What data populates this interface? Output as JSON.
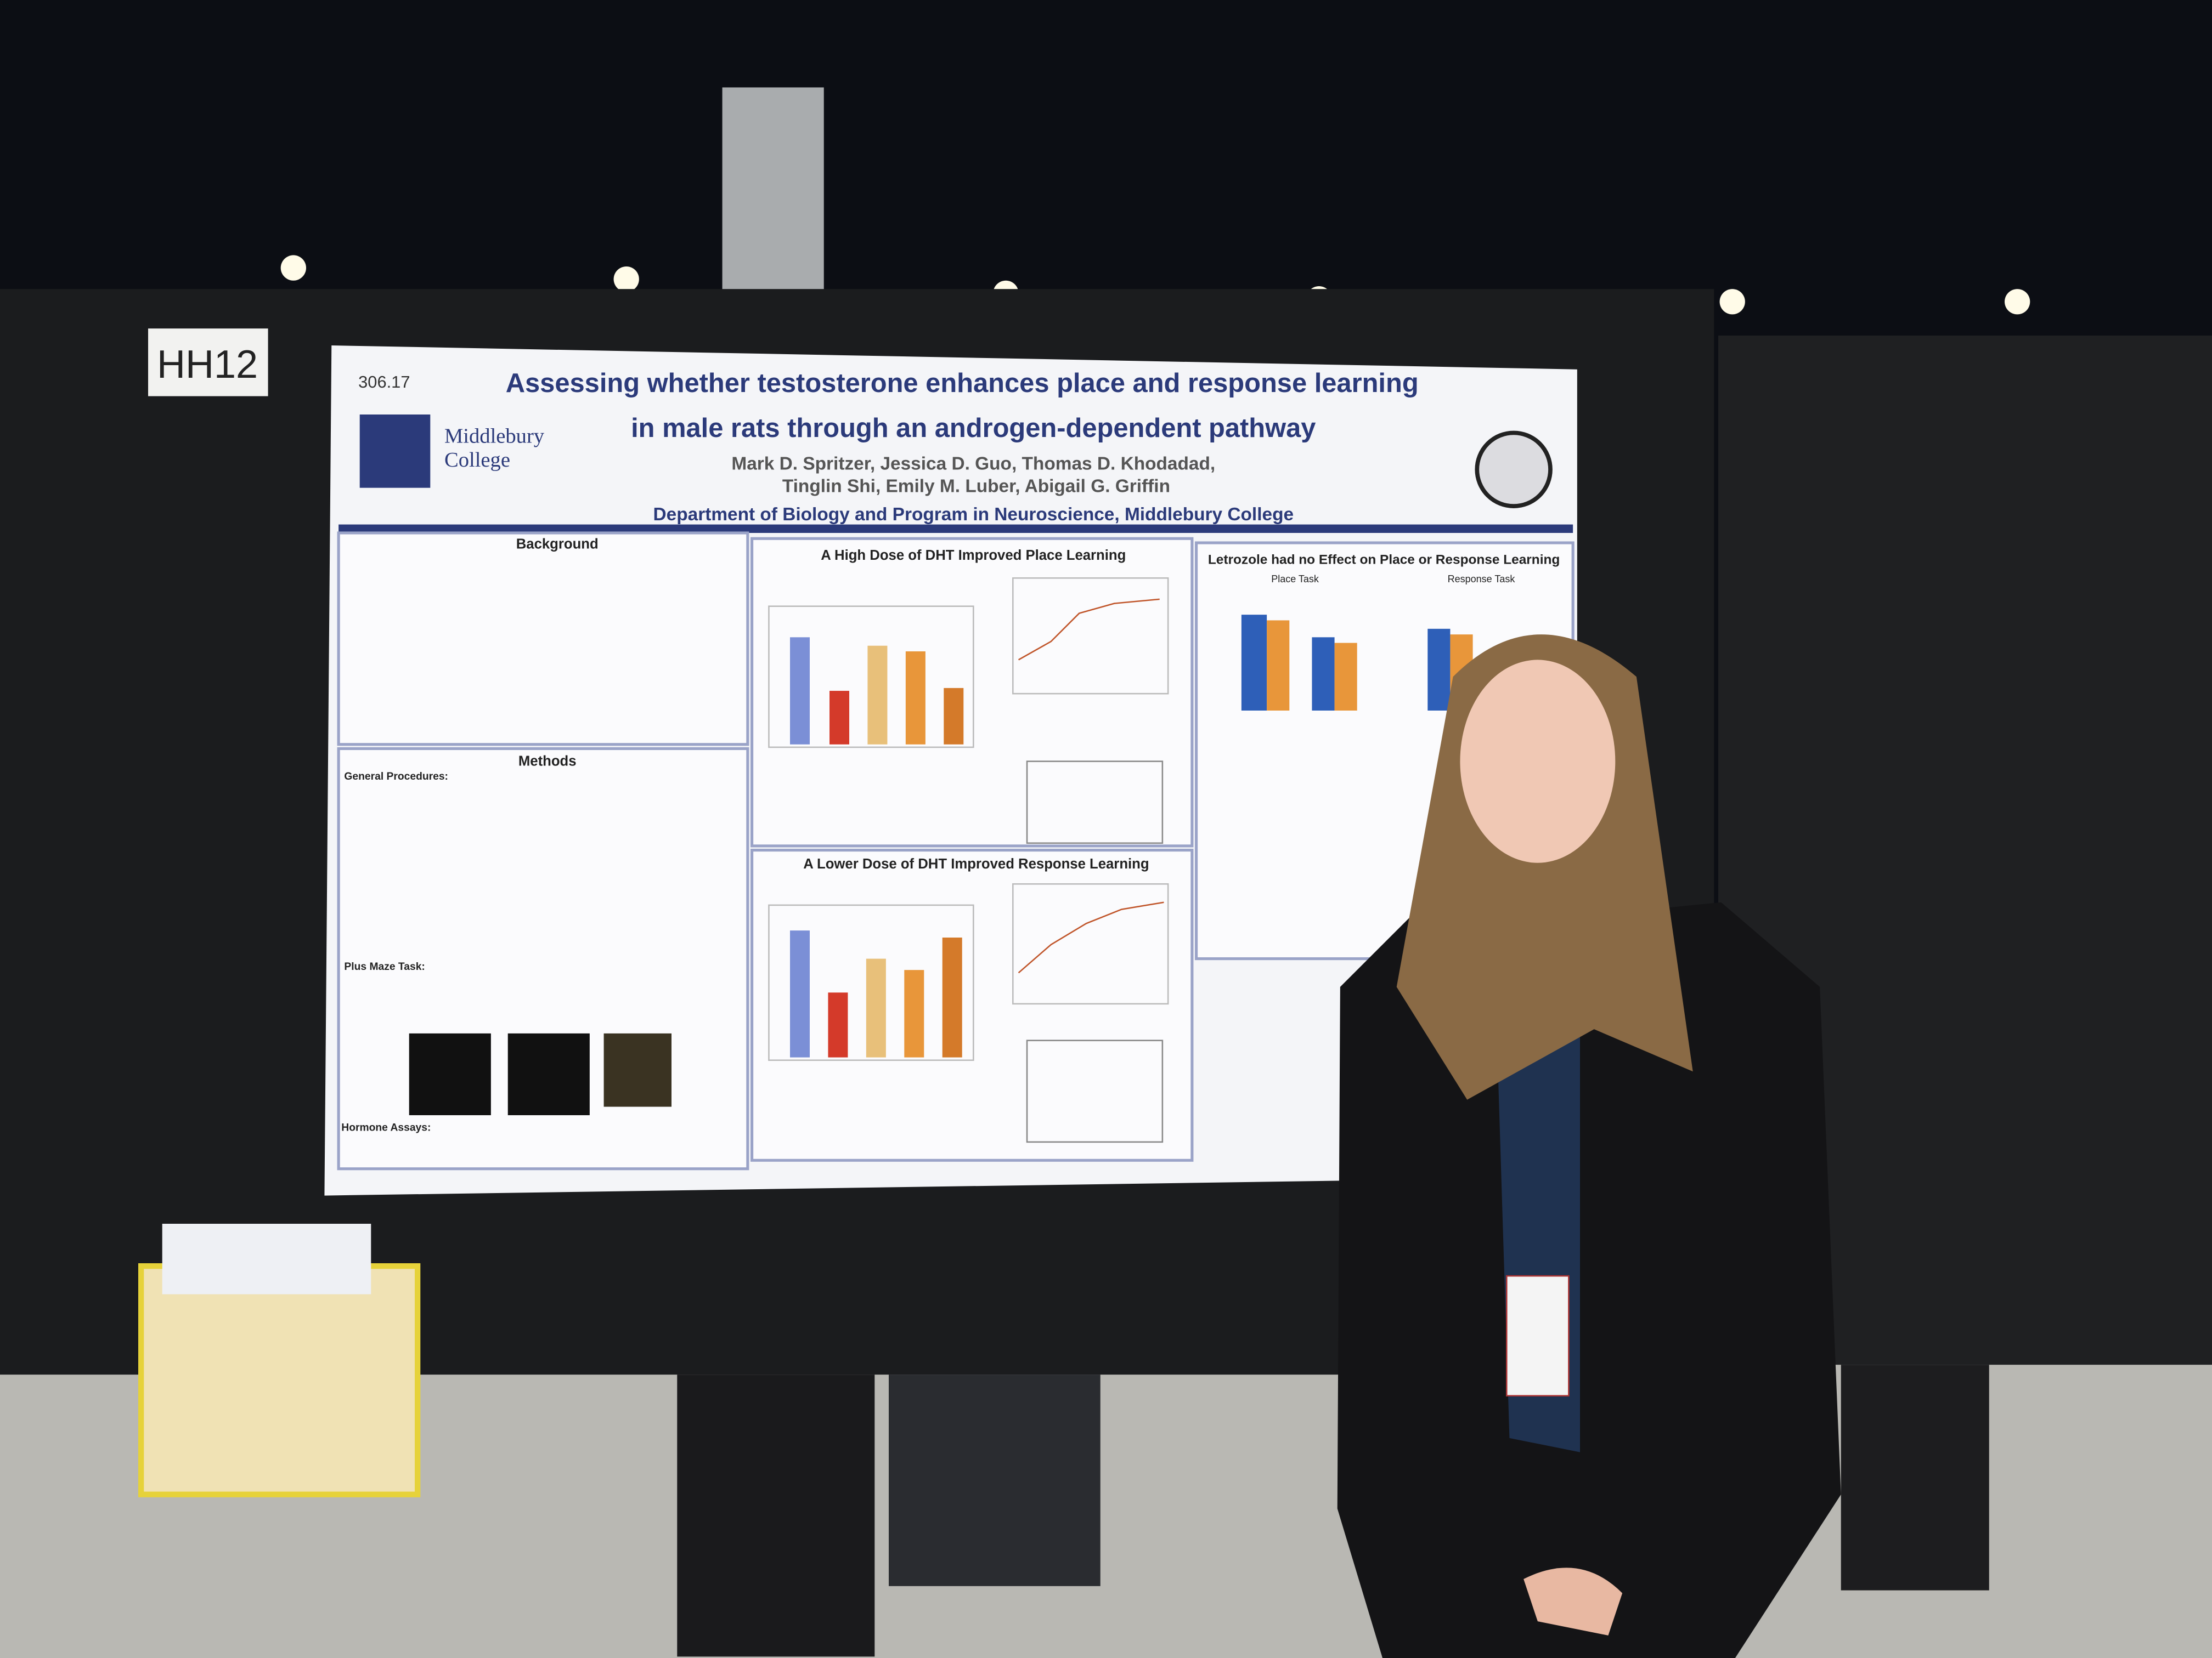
{
  "booth_label": "HH12",
  "poster": {
    "number": "306.17",
    "title_lines": [
      "Assessing whether testosterone enhances place and response learning",
      "in male rats through an androgen-dependent pathway"
    ],
    "author_lines": [
      "Mark D. Spritzer, Jessica D. Guo, Thomas D. Khodadad,",
      "Tinglin Shi, Emily M. Luber, Abigail G. Griffin"
    ],
    "department": "Department of Biology and Program in Neuroscience, Middlebury College",
    "institution_lines": [
      "Middlebury",
      "College"
    ],
    "sections": {
      "background": "Background",
      "methods": "Methods",
      "place": "A High Dose of DHT Improved Place Learning",
      "response": "A Lower Dose of DHT Improved Response Learning",
      "letrozole": "Letrozole had no Effect on Place or Response Learning"
    },
    "subheadings": {
      "general": "General Procedures:",
      "maze": "Plus Maze Task:",
      "hormone": "Hormone Assays:",
      "place_task": "Place Task",
      "response_task": "Response Task"
    }
  }
}
